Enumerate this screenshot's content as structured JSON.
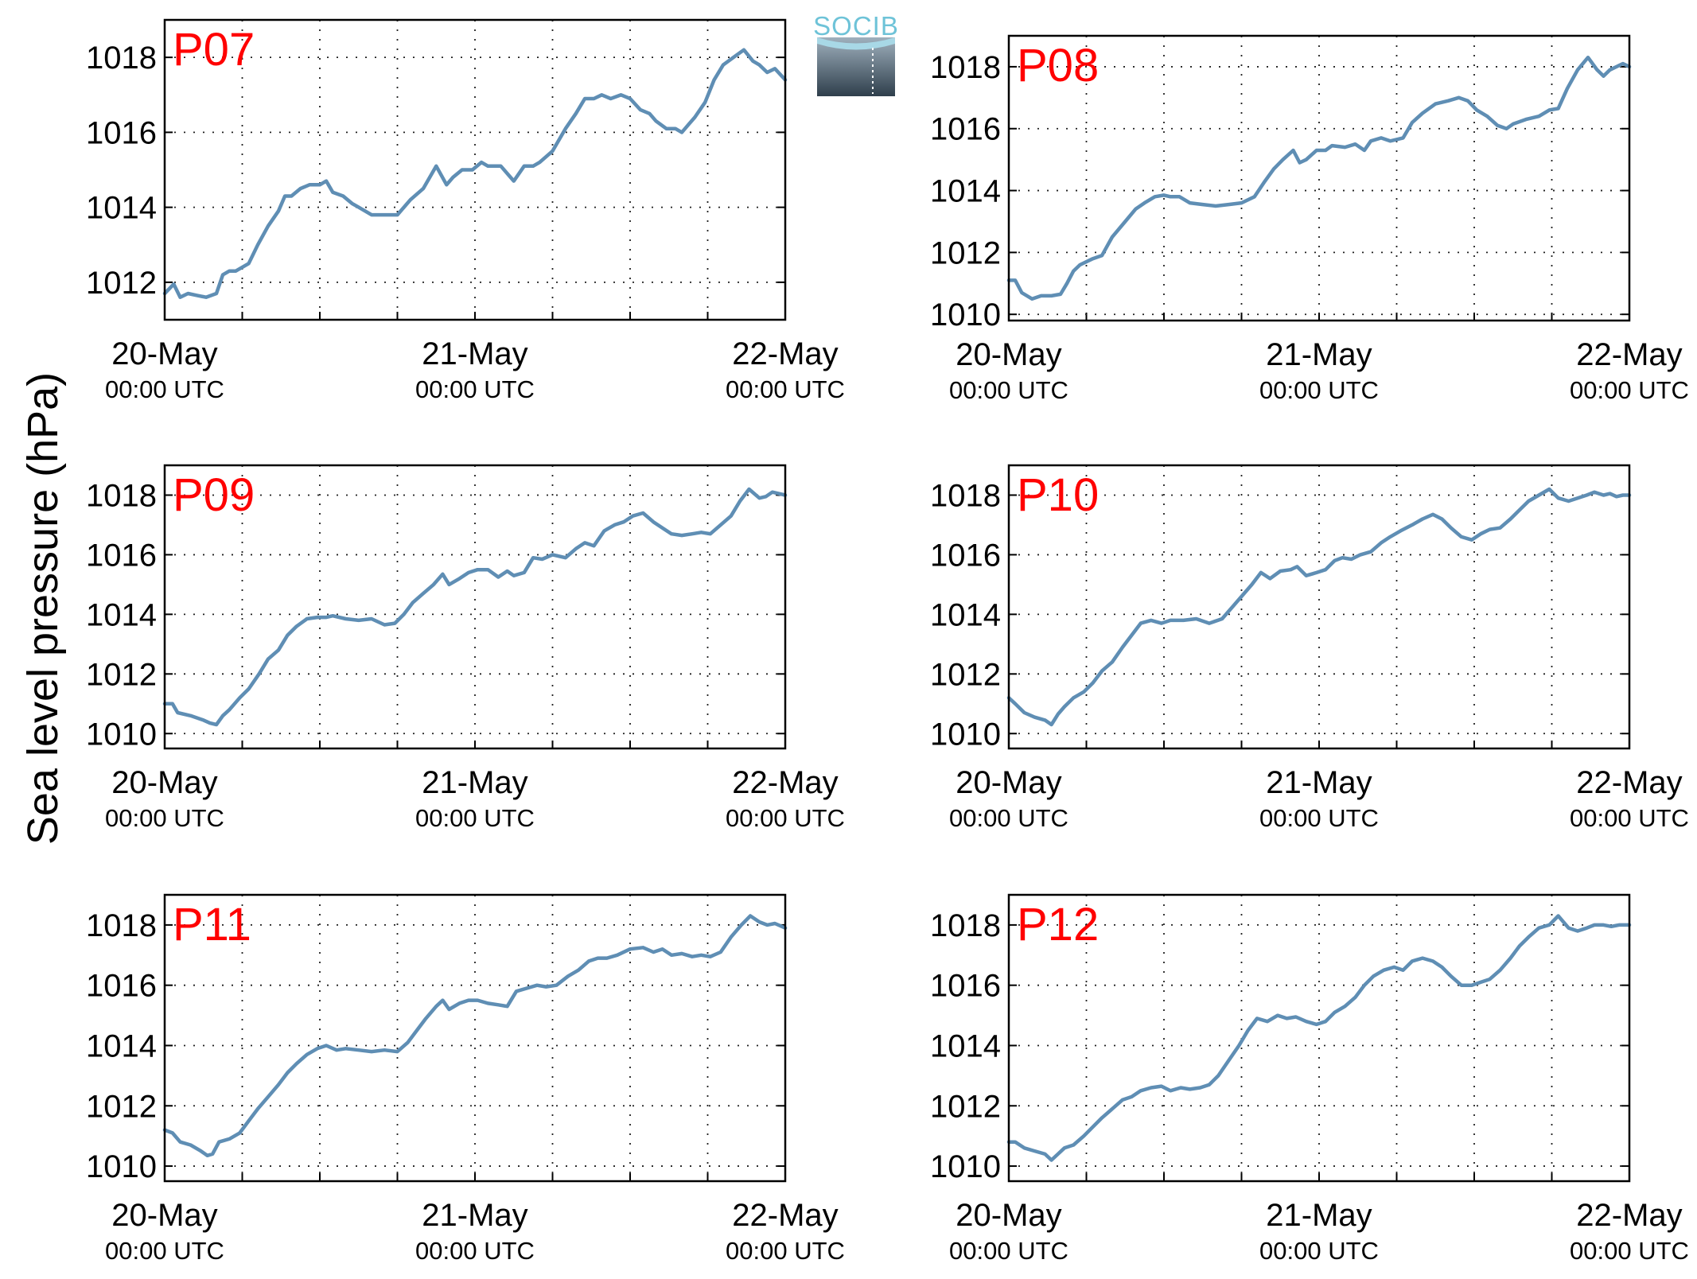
{
  "figure": {
    "ylabel": "Sea level pressure (hPa)",
    "logo_text": "SOCIB",
    "line_color": "#5f8eb4",
    "label_color": "#ff0000"
  },
  "chart_data": [
    {
      "type": "line",
      "panel": "P07",
      "x_ticks": [
        {
          "date": "20-May",
          "time": "00:00 UTC"
        },
        {
          "date": "21-May",
          "time": "00:00 UTC"
        },
        {
          "date": "22-May",
          "time": "00:00 UTC"
        }
      ],
      "x_unit": "hours since 20-May 00:00 UTC",
      "xlim": [
        0,
        48
      ],
      "ylim": [
        1011.0,
        1019.0
      ],
      "yticks": [
        1012,
        1014,
        1016,
        1018
      ],
      "grid": true,
      "series": [
        {
          "x": [
            0,
            0.7,
            1.2,
            1.8,
            2.5,
            3.2,
            4.0,
            4.5,
            5.0,
            5.5,
            6.5,
            7.2,
            8.0,
            8.8,
            9.3,
            9.8,
            10.5,
            11.2,
            12.0,
            12.5,
            13.0,
            13.8,
            14.5,
            15.0,
            16.0,
            17.0,
            18.0,
            19.0,
            20.0,
            21.0,
            21.8,
            22.3,
            23.0,
            23.8,
            24.5,
            25.0,
            26.0,
            27.0,
            27.8,
            28.5,
            29.0,
            30.0,
            31.0,
            31.8,
            32.5,
            33.2,
            33.8,
            34.5,
            35.3,
            36.0,
            36.8,
            37.5,
            38.0,
            38.8,
            39.5,
            40.0,
            40.5,
            41.0,
            41.8,
            42.5,
            43.2,
            44.0,
            44.8,
            45.5,
            46.0,
            46.6,
            47.2,
            48.0
          ],
          "y": [
            1011.7,
            1011.95,
            1011.6,
            1011.7,
            1011.65,
            1011.6,
            1011.7,
            1012.2,
            1012.3,
            1012.3,
            1012.5,
            1013.0,
            1013.5,
            1013.9,
            1014.3,
            1014.3,
            1014.5,
            1014.6,
            1014.6,
            1014.7,
            1014.4,
            1014.3,
            1014.1,
            1014.0,
            1013.8,
            1013.8,
            1013.8,
            1014.2,
            1014.5,
            1015.1,
            1014.6,
            1014.8,
            1015.0,
            1015.0,
            1015.2,
            1015.1,
            1015.1,
            1014.7,
            1015.1,
            1015.1,
            1015.2,
            1015.5,
            1016.1,
            1016.5,
            1016.9,
            1016.9,
            1017.0,
            1016.9,
            1017.0,
            1016.9,
            1016.6,
            1016.5,
            1016.3,
            1016.1,
            1016.1,
            1016.0,
            1016.2,
            1016.4,
            1016.8,
            1017.4,
            1017.8,
            1018.0,
            1018.2,
            1017.9,
            1017.8,
            1017.6,
            1017.7,
            1017.4
          ]
        }
      ]
    },
    {
      "type": "line",
      "panel": "P08",
      "x_ticks": [
        {
          "date": "20-May",
          "time": "00:00 UTC"
        },
        {
          "date": "21-May",
          "time": "00:00 UTC"
        },
        {
          "date": "22-May",
          "time": "00:00 UTC"
        }
      ],
      "x_unit": "hours since 20-May 00:00 UTC",
      "xlim": [
        0,
        48
      ],
      "ylim": [
        1009.8,
        1019.0
      ],
      "yticks": [
        1010,
        1012,
        1014,
        1016,
        1018
      ],
      "grid": true,
      "series": [
        {
          "x": [
            0,
            0.5,
            1.0,
            1.8,
            2.5,
            3.3,
            4.0,
            4.5,
            5.0,
            5.5,
            6.5,
            7.2,
            8.0,
            9.0,
            9.8,
            10.5,
            11.3,
            12.0,
            12.5,
            13.2,
            14.0,
            15.0,
            16.0,
            17.0,
            18.0,
            19.0,
            19.8,
            20.5,
            21.2,
            22.0,
            22.5,
            23.0,
            23.8,
            24.5,
            25.0,
            26.0,
            26.8,
            27.5,
            28.0,
            28.8,
            29.5,
            30.5,
            31.2,
            32.0,
            33.0,
            34.0,
            34.8,
            35.5,
            36.2,
            37.0,
            37.8,
            38.5,
            39.0,
            40.0,
            41.0,
            41.8,
            42.5,
            43.2,
            44.0,
            44.8,
            45.5,
            46.0,
            46.5,
            47.0,
            47.5,
            48.0
          ],
          "y": [
            1011.1,
            1011.1,
            1010.7,
            1010.5,
            1010.6,
            1010.6,
            1010.65,
            1011.0,
            1011.4,
            1011.6,
            1011.8,
            1011.9,
            1012.5,
            1013.0,
            1013.4,
            1013.6,
            1013.8,
            1013.85,
            1013.8,
            1013.8,
            1013.6,
            1013.55,
            1013.5,
            1013.55,
            1013.6,
            1013.8,
            1014.3,
            1014.7,
            1015.0,
            1015.3,
            1014.9,
            1015.0,
            1015.3,
            1015.3,
            1015.45,
            1015.4,
            1015.5,
            1015.3,
            1015.6,
            1015.7,
            1015.6,
            1015.7,
            1016.2,
            1016.5,
            1016.8,
            1016.9,
            1017.0,
            1016.9,
            1016.6,
            1016.4,
            1016.1,
            1016.0,
            1016.15,
            1016.3,
            1016.4,
            1016.6,
            1016.65,
            1017.3,
            1017.9,
            1018.3,
            1017.9,
            1017.7,
            1017.9,
            1018.0,
            1018.1,
            1018.0
          ]
        }
      ]
    },
    {
      "type": "line",
      "panel": "P09",
      "x_ticks": [
        {
          "date": "20-May",
          "time": "00:00 UTC"
        },
        {
          "date": "21-May",
          "time": "00:00 UTC"
        },
        {
          "date": "22-May",
          "time": "00:00 UTC"
        }
      ],
      "x_unit": "hours since 20-May 00:00 UTC",
      "xlim": [
        0,
        48
      ],
      "ylim": [
        1009.5,
        1019.0
      ],
      "yticks": [
        1010,
        1012,
        1014,
        1016,
        1018
      ],
      "grid": true,
      "series": [
        {
          "x": [
            0,
            0.6,
            1.0,
            2.0,
            3.0,
            3.5,
            4.0,
            4.5,
            5.0,
            5.8,
            6.5,
            7.3,
            8.0,
            8.8,
            9.5,
            10.2,
            11.0,
            11.8,
            12.5,
            13.0,
            14.0,
            15.0,
            16.0,
            17.0,
            17.8,
            18.5,
            19.2,
            20.0,
            20.8,
            21.5,
            22.0,
            22.8,
            23.5,
            24.2,
            25.0,
            25.8,
            26.5,
            27.0,
            27.8,
            28.5,
            29.2,
            30.0,
            31.0,
            31.8,
            32.5,
            33.2,
            34.0,
            34.8,
            35.5,
            36.2,
            37.0,
            37.8,
            38.5,
            39.2,
            40.0,
            40.8,
            41.5,
            42.2,
            43.0,
            43.8,
            44.5,
            45.2,
            46.0,
            46.5,
            47.0,
            47.5,
            48.0
          ],
          "y": [
            1011.0,
            1011.0,
            1010.7,
            1010.6,
            1010.45,
            1010.35,
            1010.3,
            1010.6,
            1010.8,
            1011.2,
            1011.5,
            1012.0,
            1012.5,
            1012.8,
            1013.3,
            1013.6,
            1013.85,
            1013.9,
            1013.9,
            1013.95,
            1013.85,
            1013.8,
            1013.85,
            1013.65,
            1013.7,
            1014.0,
            1014.4,
            1014.7,
            1015.0,
            1015.35,
            1015.0,
            1015.2,
            1015.4,
            1015.5,
            1015.5,
            1015.25,
            1015.45,
            1015.3,
            1015.4,
            1015.9,
            1015.85,
            1016.0,
            1015.9,
            1016.2,
            1016.4,
            1016.3,
            1016.8,
            1017.0,
            1017.1,
            1017.3,
            1017.4,
            1017.1,
            1016.9,
            1016.7,
            1016.65,
            1016.7,
            1016.75,
            1016.7,
            1017.0,
            1017.3,
            1017.8,
            1018.2,
            1017.9,
            1017.95,
            1018.1,
            1018.05,
            1018.0
          ]
        }
      ]
    },
    {
      "type": "line",
      "panel": "P10",
      "x_ticks": [
        {
          "date": "20-May",
          "time": "00:00 UTC"
        },
        {
          "date": "21-May",
          "time": "00:00 UTC"
        },
        {
          "date": "22-May",
          "time": "00:00 UTC"
        }
      ],
      "x_unit": "hours since 20-May 00:00 UTC",
      "xlim": [
        0,
        48
      ],
      "ylim": [
        1009.5,
        1019.0
      ],
      "yticks": [
        1010,
        1012,
        1014,
        1016,
        1018
      ],
      "grid": true,
      "series": [
        {
          "x": [
            0,
            0.5,
            1.2,
            2.0,
            2.8,
            3.3,
            3.8,
            4.3,
            5.0,
            5.8,
            6.5,
            7.2,
            8.0,
            8.8,
            9.5,
            10.2,
            11.0,
            11.8,
            12.5,
            13.5,
            14.5,
            15.5,
            16.5,
            17.2,
            18.0,
            18.8,
            19.5,
            20.2,
            21.0,
            21.8,
            22.3,
            23.0,
            23.8,
            24.5,
            25.2,
            25.8,
            26.5,
            27.2,
            28.0,
            28.8,
            29.5,
            30.3,
            31.2,
            32.0,
            32.8,
            33.5,
            34.2,
            35.0,
            35.8,
            36.5,
            37.2,
            38.0,
            38.8,
            39.5,
            40.2,
            41.0,
            41.8,
            42.5,
            43.3,
            44.0,
            44.7,
            45.3,
            46.0,
            46.5,
            47.0,
            47.5,
            48.0
          ],
          "y": [
            1011.2,
            1011.0,
            1010.7,
            1010.55,
            1010.45,
            1010.3,
            1010.65,
            1010.9,
            1011.2,
            1011.4,
            1011.7,
            1012.1,
            1012.4,
            1012.9,
            1013.3,
            1013.7,
            1013.8,
            1013.7,
            1013.8,
            1013.8,
            1013.85,
            1013.7,
            1013.85,
            1014.2,
            1014.6,
            1015.0,
            1015.4,
            1015.2,
            1015.45,
            1015.5,
            1015.6,
            1015.3,
            1015.4,
            1015.5,
            1015.8,
            1015.9,
            1015.85,
            1016.0,
            1016.1,
            1016.4,
            1016.6,
            1016.8,
            1017.0,
            1017.2,
            1017.35,
            1017.2,
            1016.9,
            1016.6,
            1016.5,
            1016.7,
            1016.85,
            1016.9,
            1017.2,
            1017.5,
            1017.8,
            1018.0,
            1018.2,
            1017.9,
            1017.8,
            1017.9,
            1018.0,
            1018.1,
            1018.0,
            1018.05,
            1017.95,
            1018.0,
            1018.0
          ]
        }
      ]
    },
    {
      "type": "line",
      "panel": "P11",
      "x_ticks": [
        {
          "date": "20-May",
          "time": "00:00 UTC"
        },
        {
          "date": "21-May",
          "time": "00:00 UTC"
        },
        {
          "date": "22-May",
          "time": "00:00 UTC"
        }
      ],
      "x_unit": "hours since 20-May 00:00 UTC",
      "xlim": [
        0,
        48
      ],
      "ylim": [
        1009.5,
        1019.0
      ],
      "yticks": [
        1010,
        1012,
        1014,
        1016,
        1018
      ],
      "grid": true,
      "series": [
        {
          "x": [
            0,
            0.6,
            1.2,
            2.0,
            2.8,
            3.3,
            3.7,
            4.2,
            5.0,
            5.8,
            6.5,
            7.2,
            8.0,
            8.8,
            9.5,
            10.2,
            11.0,
            11.8,
            12.5,
            13.3,
            14.0,
            15.0,
            16.0,
            17.0,
            18.0,
            18.8,
            19.5,
            20.2,
            21.0,
            21.5,
            22.0,
            22.8,
            23.5,
            24.2,
            25.0,
            25.8,
            26.5,
            27.2,
            28.0,
            28.8,
            29.5,
            30.3,
            31.2,
            32.0,
            32.8,
            33.5,
            34.2,
            35.0,
            36.0,
            37.0,
            37.8,
            38.5,
            39.2,
            40.0,
            40.8,
            41.5,
            42.2,
            43.0,
            43.8,
            44.6,
            45.3,
            46.0,
            46.6,
            47.2,
            48.0
          ],
          "y": [
            1011.2,
            1011.1,
            1010.8,
            1010.7,
            1010.5,
            1010.35,
            1010.4,
            1010.8,
            1010.9,
            1011.1,
            1011.5,
            1011.9,
            1012.3,
            1012.7,
            1013.1,
            1013.4,
            1013.7,
            1013.9,
            1014.0,
            1013.85,
            1013.9,
            1013.85,
            1013.8,
            1013.85,
            1013.8,
            1014.1,
            1014.5,
            1014.9,
            1015.3,
            1015.5,
            1015.2,
            1015.4,
            1015.5,
            1015.5,
            1015.4,
            1015.35,
            1015.3,
            1015.8,
            1015.9,
            1016.0,
            1015.95,
            1016.0,
            1016.3,
            1016.5,
            1016.8,
            1016.9,
            1016.9,
            1017.0,
            1017.2,
            1017.25,
            1017.1,
            1017.2,
            1017.0,
            1017.05,
            1016.95,
            1017.0,
            1016.95,
            1017.1,
            1017.6,
            1018.0,
            1018.3,
            1018.1,
            1018.0,
            1018.05,
            1017.9
          ]
        }
      ]
    },
    {
      "type": "line",
      "panel": "P12",
      "x_ticks": [
        {
          "date": "20-May",
          "time": "00:00 UTC"
        },
        {
          "date": "21-May",
          "time": "00:00 UTC"
        },
        {
          "date": "22-May",
          "time": "00:00 UTC"
        }
      ],
      "x_unit": "hours since 20-May 00:00 UTC",
      "xlim": [
        0,
        48
      ],
      "ylim": [
        1009.5,
        1019.0
      ],
      "yticks": [
        1010,
        1012,
        1014,
        1016,
        1018
      ],
      "grid": true,
      "series": [
        {
          "x": [
            0,
            0.5,
            1.2,
            2.0,
            2.8,
            3.3,
            3.8,
            4.3,
            5.0,
            5.8,
            6.5,
            7.2,
            8.0,
            8.8,
            9.5,
            10.2,
            11.0,
            11.8,
            12.5,
            13.3,
            14.0,
            14.8,
            15.5,
            16.2,
            17.0,
            17.8,
            18.5,
            19.2,
            20.0,
            20.8,
            21.5,
            22.2,
            23.0,
            23.8,
            24.5,
            25.2,
            26.0,
            26.8,
            27.5,
            28.2,
            29.0,
            29.8,
            30.5,
            31.2,
            32.0,
            32.8,
            33.5,
            34.2,
            35.0,
            35.8,
            36.5,
            37.2,
            38.0,
            38.8,
            39.5,
            40.2,
            41.0,
            41.8,
            42.5,
            43.3,
            44.0,
            44.7,
            45.3,
            46.0,
            46.6,
            47.2,
            48.0
          ],
          "y": [
            1010.8,
            1010.8,
            1010.6,
            1010.5,
            1010.4,
            1010.2,
            1010.4,
            1010.6,
            1010.7,
            1011.0,
            1011.3,
            1011.6,
            1011.9,
            1012.2,
            1012.3,
            1012.5,
            1012.6,
            1012.65,
            1012.5,
            1012.6,
            1012.55,
            1012.6,
            1012.7,
            1013.0,
            1013.5,
            1014.0,
            1014.5,
            1014.9,
            1014.8,
            1015.0,
            1014.9,
            1014.95,
            1014.8,
            1014.7,
            1014.8,
            1015.1,
            1015.3,
            1015.6,
            1016.0,
            1016.3,
            1016.5,
            1016.6,
            1016.5,
            1016.8,
            1016.9,
            1016.8,
            1016.6,
            1016.3,
            1016.0,
            1016.0,
            1016.1,
            1016.2,
            1016.5,
            1016.9,
            1017.3,
            1017.6,
            1017.9,
            1018.0,
            1018.3,
            1017.9,
            1017.8,
            1017.9,
            1018.0,
            1018.0,
            1017.95,
            1018.0,
            1018.0
          ]
        }
      ]
    }
  ]
}
